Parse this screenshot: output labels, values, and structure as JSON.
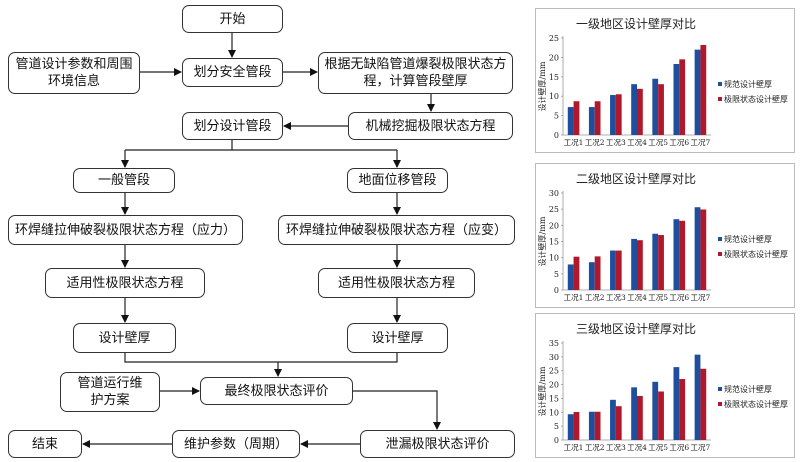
{
  "flowchart": {
    "start": "开始",
    "inputs": "管道设计参数和周围环境信息",
    "divide_safety": "划分安全管段",
    "burst_calc": "根据无缺陷管道爆裂极限状态方程，计算管段壁厚",
    "excavation": "机械挖掘极限状态方程",
    "divide_design": "划分设计管段",
    "general_segment": "一般管段",
    "ground_segment": "地面位移管段",
    "girth_stress": "环焊缝拉伸破裂极限状态方程（应力）",
    "girth_strain": "环焊缝拉伸破裂极限状态方程（应变）",
    "serviceability_left": "适用性极限状态方程",
    "serviceability_right": "适用性极限状态方程",
    "wall_left": "设计壁厚",
    "wall_right": "设计壁厚",
    "maintenance_plan": "管道运行维护方案",
    "final_eval": "最终极限状态评价",
    "leak_eval": "泄漏极限状态评价",
    "maint_params": "维护参数（周期）",
    "end": "结束"
  },
  "chart_data": [
    {
      "type": "bar",
      "title": "一级地区设计壁厚对比",
      "ylabel": "设计壁厚/mm",
      "xlabel": "",
      "ylim": [
        0,
        25
      ],
      "yticks": [
        0,
        5,
        10,
        15,
        20,
        25
      ],
      "categories": [
        "工况1",
        "工况2",
        "工况3",
        "工况4",
        "工况5",
        "工况6",
        "工况7"
      ],
      "series": [
        {
          "name": "规范设计壁厚",
          "color": "#1f4e9c",
          "values": [
            7.2,
            7.2,
            10.3,
            13.1,
            14.5,
            18.3,
            22.0
          ]
        },
        {
          "name": "极限状态设计壁厚",
          "color": "#b0192c",
          "values": [
            8.7,
            8.7,
            10.5,
            11.9,
            13.1,
            19.5,
            23.2
          ]
        }
      ],
      "legend": "right",
      "grid": false
    },
    {
      "type": "bar",
      "title": "二级地区设计壁厚对比",
      "ylabel": "设计壁厚/mm",
      "xlabel": "",
      "ylim": [
        0,
        30
      ],
      "yticks": [
        0,
        5,
        10,
        15,
        20,
        25,
        30
      ],
      "categories": [
        "工况1",
        "工况2",
        "工况3",
        "工况4",
        "工况5",
        "工况6",
        "工况7"
      ],
      "series": [
        {
          "name": "规范设计壁厚",
          "color": "#1f4e9c",
          "values": [
            7.9,
            8.6,
            12.2,
            15.8,
            17.4,
            21.9,
            25.6
          ]
        },
        {
          "name": "极限状态设计壁厚",
          "color": "#b0192c",
          "values": [
            10.3,
            10.4,
            12.2,
            15.4,
            17.0,
            21.4,
            24.9
          ]
        }
      ],
      "legend": "right",
      "grid": false
    },
    {
      "type": "bar",
      "title": "三级地区设计壁厚对比",
      "ylabel": "设计壁厚/mm",
      "xlabel": "",
      "ylim": [
        0,
        35
      ],
      "yticks": [
        0,
        5,
        10,
        15,
        20,
        25,
        30,
        35
      ],
      "categories": [
        "工况1",
        "工况2",
        "工况3",
        "工况4",
        "工况5",
        "工况6",
        "工况7"
      ],
      "series": [
        {
          "name": "规范设计壁厚",
          "color": "#1f4e9c",
          "values": [
            9.3,
            10.2,
            14.5,
            19.0,
            21.0,
            26.3,
            30.8
          ]
        },
        {
          "name": "极限状态设计壁厚",
          "color": "#b0192c",
          "values": [
            10.1,
            10.2,
            12.2,
            15.9,
            17.5,
            22.0,
            25.7
          ]
        }
      ],
      "legend": "right",
      "grid": false
    }
  ]
}
